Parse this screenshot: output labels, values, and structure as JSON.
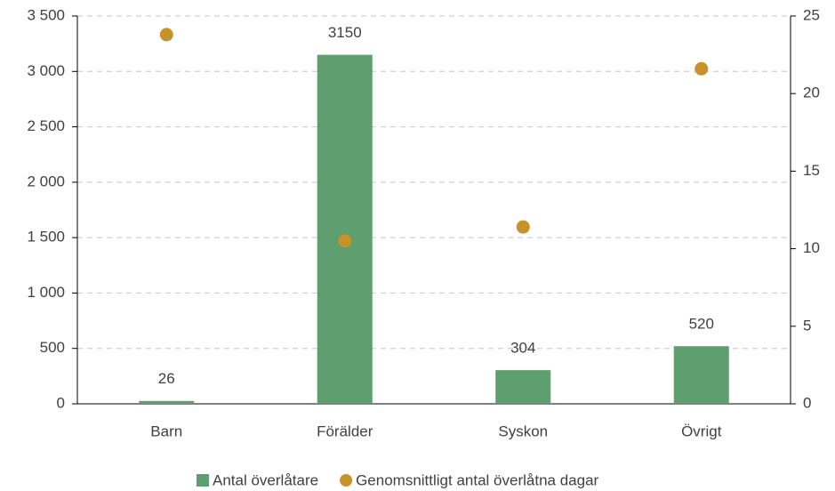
{
  "chart_data": {
    "type": "bar",
    "categories": [
      "Barn",
      "Förälder",
      "Syskon",
      "Övrigt"
    ],
    "series": [
      {
        "name": "Antal överlåtare",
        "color": "#5f9e6e",
        "values": [
          26,
          3150,
          304,
          520
        ]
      },
      {
        "name": "Genomsnittligt antal överlåtna dagar",
        "color": "#c8922a",
        "type": "scatter",
        "axis": "y2",
        "values": [
          23.8,
          10.5,
          11.4,
          21.6
        ]
      }
    ],
    "ylim": [
      0,
      3500
    ],
    "yticks": [
      0,
      500,
      {
        "value": 1000,
        "label": "1 000"
      },
      {
        "value": 1500,
        "label": "1 500"
      },
      {
        "value": 2000,
        "label": "2 000"
      },
      {
        "value": 2500,
        "label": "2 500"
      },
      {
        "value": 3000,
        "label": "3 000"
      },
      {
        "value": 3500,
        "label": "3 500"
      }
    ],
    "y2lim": [
      0,
      25
    ],
    "y2ticks": [
      0,
      5,
      10,
      15,
      20,
      25
    ],
    "grid": true,
    "legend": "bottom"
  }
}
